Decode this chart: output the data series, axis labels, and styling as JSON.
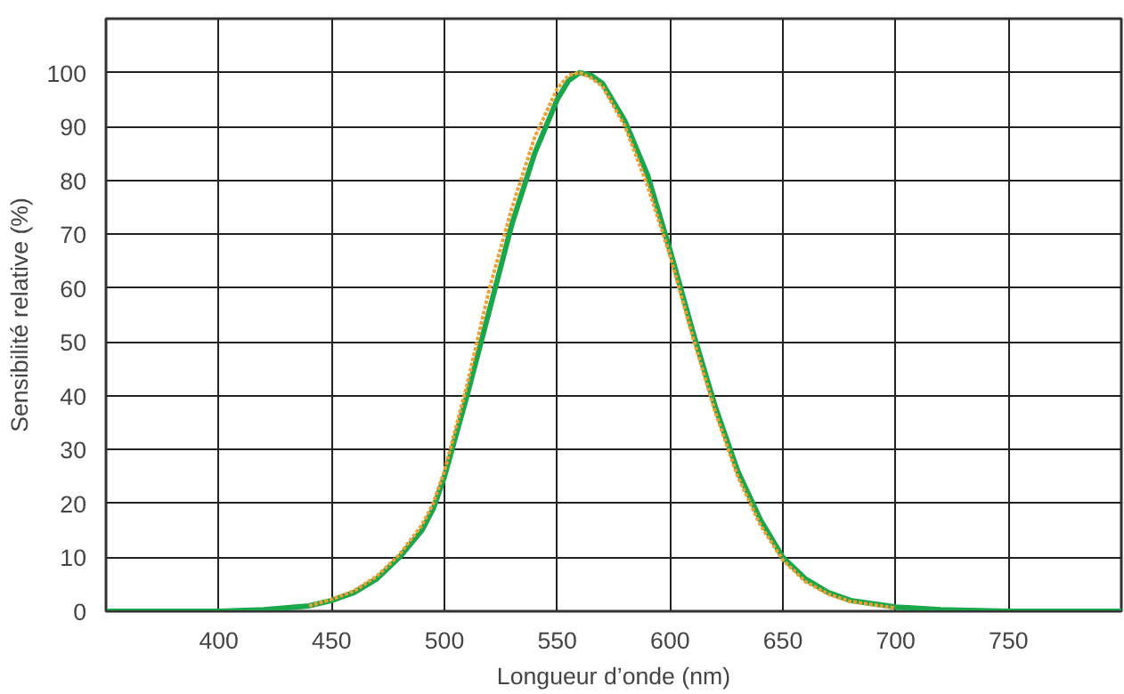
{
  "chart_data": {
    "type": "line",
    "xlabel": "Longueur d’onde (nm)",
    "ylabel": "Sensibilité relative (%)",
    "xlim": [
      350,
      800
    ],
    "ylim": [
      0,
      110
    ],
    "xticks": [
      400,
      450,
      500,
      550,
      600,
      650,
      700,
      750
    ],
    "yticks": [
      0,
      10,
      20,
      30,
      40,
      50,
      60,
      70,
      80,
      90,
      100
    ],
    "grid": true,
    "series": [
      {
        "color": "#f0a030",
        "line_style": "dotted",
        "x": [
          440,
          450,
          460,
          470,
          480,
          490,
          495,
          500,
          510,
          520,
          530,
          540,
          550,
          555,
          560,
          565,
          570,
          580,
          590,
          600,
          610,
          620,
          630,
          640,
          650,
          660,
          670,
          680,
          700
        ],
        "values": [
          1,
          2.2,
          3.8,
          6.5,
          10.5,
          16,
          20,
          26,
          42,
          60,
          75,
          88,
          97,
          99.5,
          100,
          99,
          97.5,
          90,
          79,
          66,
          51,
          37,
          25,
          16,
          9.5,
          5.5,
          3.2,
          1.8,
          0.6
        ]
      },
      {
        "color": "#1aa64a",
        "line_style": "solid",
        "x": [
          350,
          400,
          420,
          440,
          450,
          460,
          470,
          480,
          490,
          495,
          500,
          510,
          520,
          530,
          540,
          550,
          555,
          560,
          565,
          570,
          580,
          590,
          600,
          610,
          620,
          630,
          640,
          650,
          660,
          670,
          680,
          700,
          720,
          750,
          800
        ],
        "values": [
          0,
          0,
          0.3,
          1,
          2,
          3.5,
          6,
          10,
          15,
          19,
          25,
          40,
          56,
          72,
          85,
          95,
          98.5,
          100,
          99.5,
          98,
          91,
          81,
          67,
          52,
          38,
          26,
          17,
          10,
          6,
          3.5,
          2,
          0.8,
          0.3,
          0,
          0
        ]
      }
    ]
  }
}
